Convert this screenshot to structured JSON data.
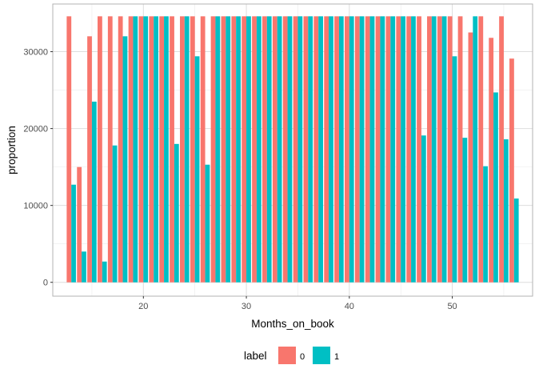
{
  "chart_data": {
    "type": "bar",
    "xlabel": "Months_on_book",
    "ylabel": "proportion",
    "xlim": [
      11.2,
      57.8
    ],
    "ylim": [
      -1800,
      36200
    ],
    "x_ticks": [
      20,
      30,
      40,
      50
    ],
    "y_ticks": [
      0,
      10000,
      20000,
      30000
    ],
    "grid": true,
    "legend": {
      "title": "label",
      "position": "bottom"
    },
    "x": [
      13,
      14,
      15,
      16,
      17,
      18,
      19,
      20,
      21,
      22,
      23,
      24,
      25,
      26,
      27,
      28,
      29,
      30,
      31,
      32,
      33,
      34,
      35,
      36,
      37,
      38,
      39,
      40,
      41,
      42,
      43,
      44,
      45,
      46,
      47,
      48,
      49,
      50,
      51,
      52,
      53,
      54,
      55,
      56
    ],
    "series": [
      {
        "name": "0",
        "color": "#F8766D",
        "values": [
          34600,
          15000,
          32000,
          34600,
          34600,
          34600,
          34600,
          34600,
          34600,
          34600,
          34600,
          34600,
          34600,
          34600,
          34600,
          34600,
          34600,
          34600,
          34600,
          34600,
          34600,
          34600,
          34600,
          34600,
          34600,
          34600,
          34600,
          34600,
          34600,
          34600,
          34600,
          34600,
          34600,
          34600,
          34600,
          34600,
          34600,
          34600,
          34600,
          32500,
          34600,
          31800,
          34600,
          29100
        ]
      },
      {
        "name": "1",
        "color": "#00BFC4",
        "values": [
          12700,
          4000,
          23500,
          2700,
          17800,
          32000,
          34600,
          34600,
          34600,
          34600,
          18000,
          34600,
          29400,
          15300,
          34600,
          34600,
          34600,
          34600,
          34600,
          34600,
          34600,
          34600,
          34600,
          34600,
          34600,
          34600,
          34600,
          34600,
          34600,
          34600,
          34600,
          34600,
          34600,
          34600,
          19100,
          34600,
          34600,
          29400,
          18800,
          34600,
          15100,
          24700,
          18600,
          10900
        ]
      }
    ]
  }
}
